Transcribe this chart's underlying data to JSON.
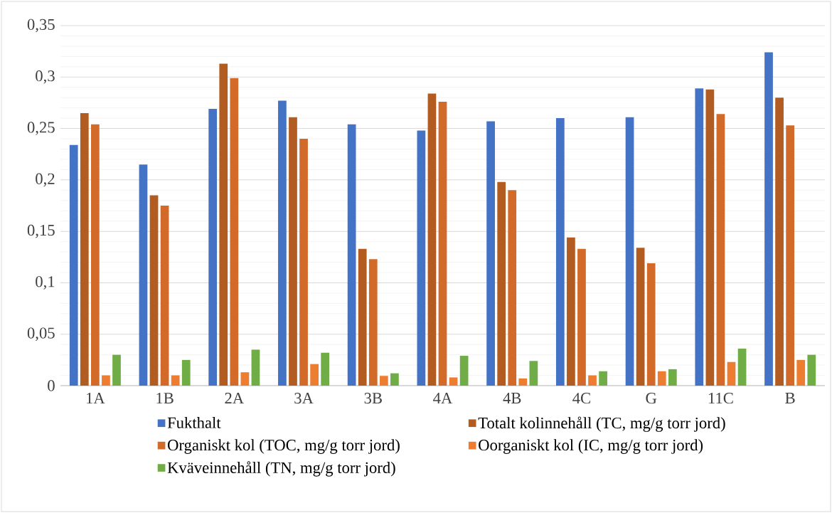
{
  "chart_data": {
    "type": "bar",
    "categories": [
      "1A",
      "1B",
      "2A",
      "3A",
      "3B",
      "4A",
      "4B",
      "4C",
      "G",
      "11C",
      "B"
    ],
    "series": [
      {
        "name": "Fukthalt",
        "color": "#4472c4",
        "values": [
          0.234,
          0.215,
          0.269,
          0.277,
          0.254,
          0.248,
          0.257,
          0.26,
          0.261,
          0.289,
          0.324
        ]
      },
      {
        "name": "Totalt kolinnehåll (TC, mg/g torr jord)",
        "color": "#b35c22",
        "values": [
          0.265,
          0.185,
          0.313,
          0.261,
          0.133,
          0.284,
          0.198,
          0.144,
          0.134,
          0.288,
          0.28
        ]
      },
      {
        "name": "Organiskt kol (TOC, mg/g torr jord)",
        "color": "#d26b2a",
        "values": [
          0.254,
          0.175,
          0.299,
          0.24,
          0.123,
          0.276,
          0.19,
          0.133,
          0.119,
          0.264,
          0.253
        ]
      },
      {
        "name": "Oorganiskt kol (IC, mg/g torr jord)",
        "color": "#ed7d31",
        "values": [
          0.01,
          0.01,
          0.013,
          0.021,
          0.0095,
          0.008,
          0.007,
          0.01,
          0.014,
          0.023,
          0.025
        ]
      },
      {
        "name": "Kväveinnehåll (TN, mg/g torr jord)",
        "color": "#70ad47",
        "values": [
          0.03,
          0.025,
          0.035,
          0.032,
          0.012,
          0.029,
          0.024,
          0.014,
          0.016,
          0.036,
          0.03
        ]
      }
    ],
    "ylim": [
      0,
      0.35
    ],
    "yticks": [
      0,
      {
        "value": 0.05,
        "label": "0,05"
      },
      {
        "value": 0.1,
        "label": "0,1"
      },
      {
        "value": 0.15,
        "label": "0,15"
      },
      {
        "value": 0.2,
        "label": "0,2"
      },
      {
        "value": 0.25,
        "label": "0,25"
      },
      {
        "value": 0.3,
        "label": "0,3"
      },
      {
        "value": 0.35,
        "label": "0,35"
      }
    ],
    "grid": "y",
    "legend": "bottom"
  }
}
